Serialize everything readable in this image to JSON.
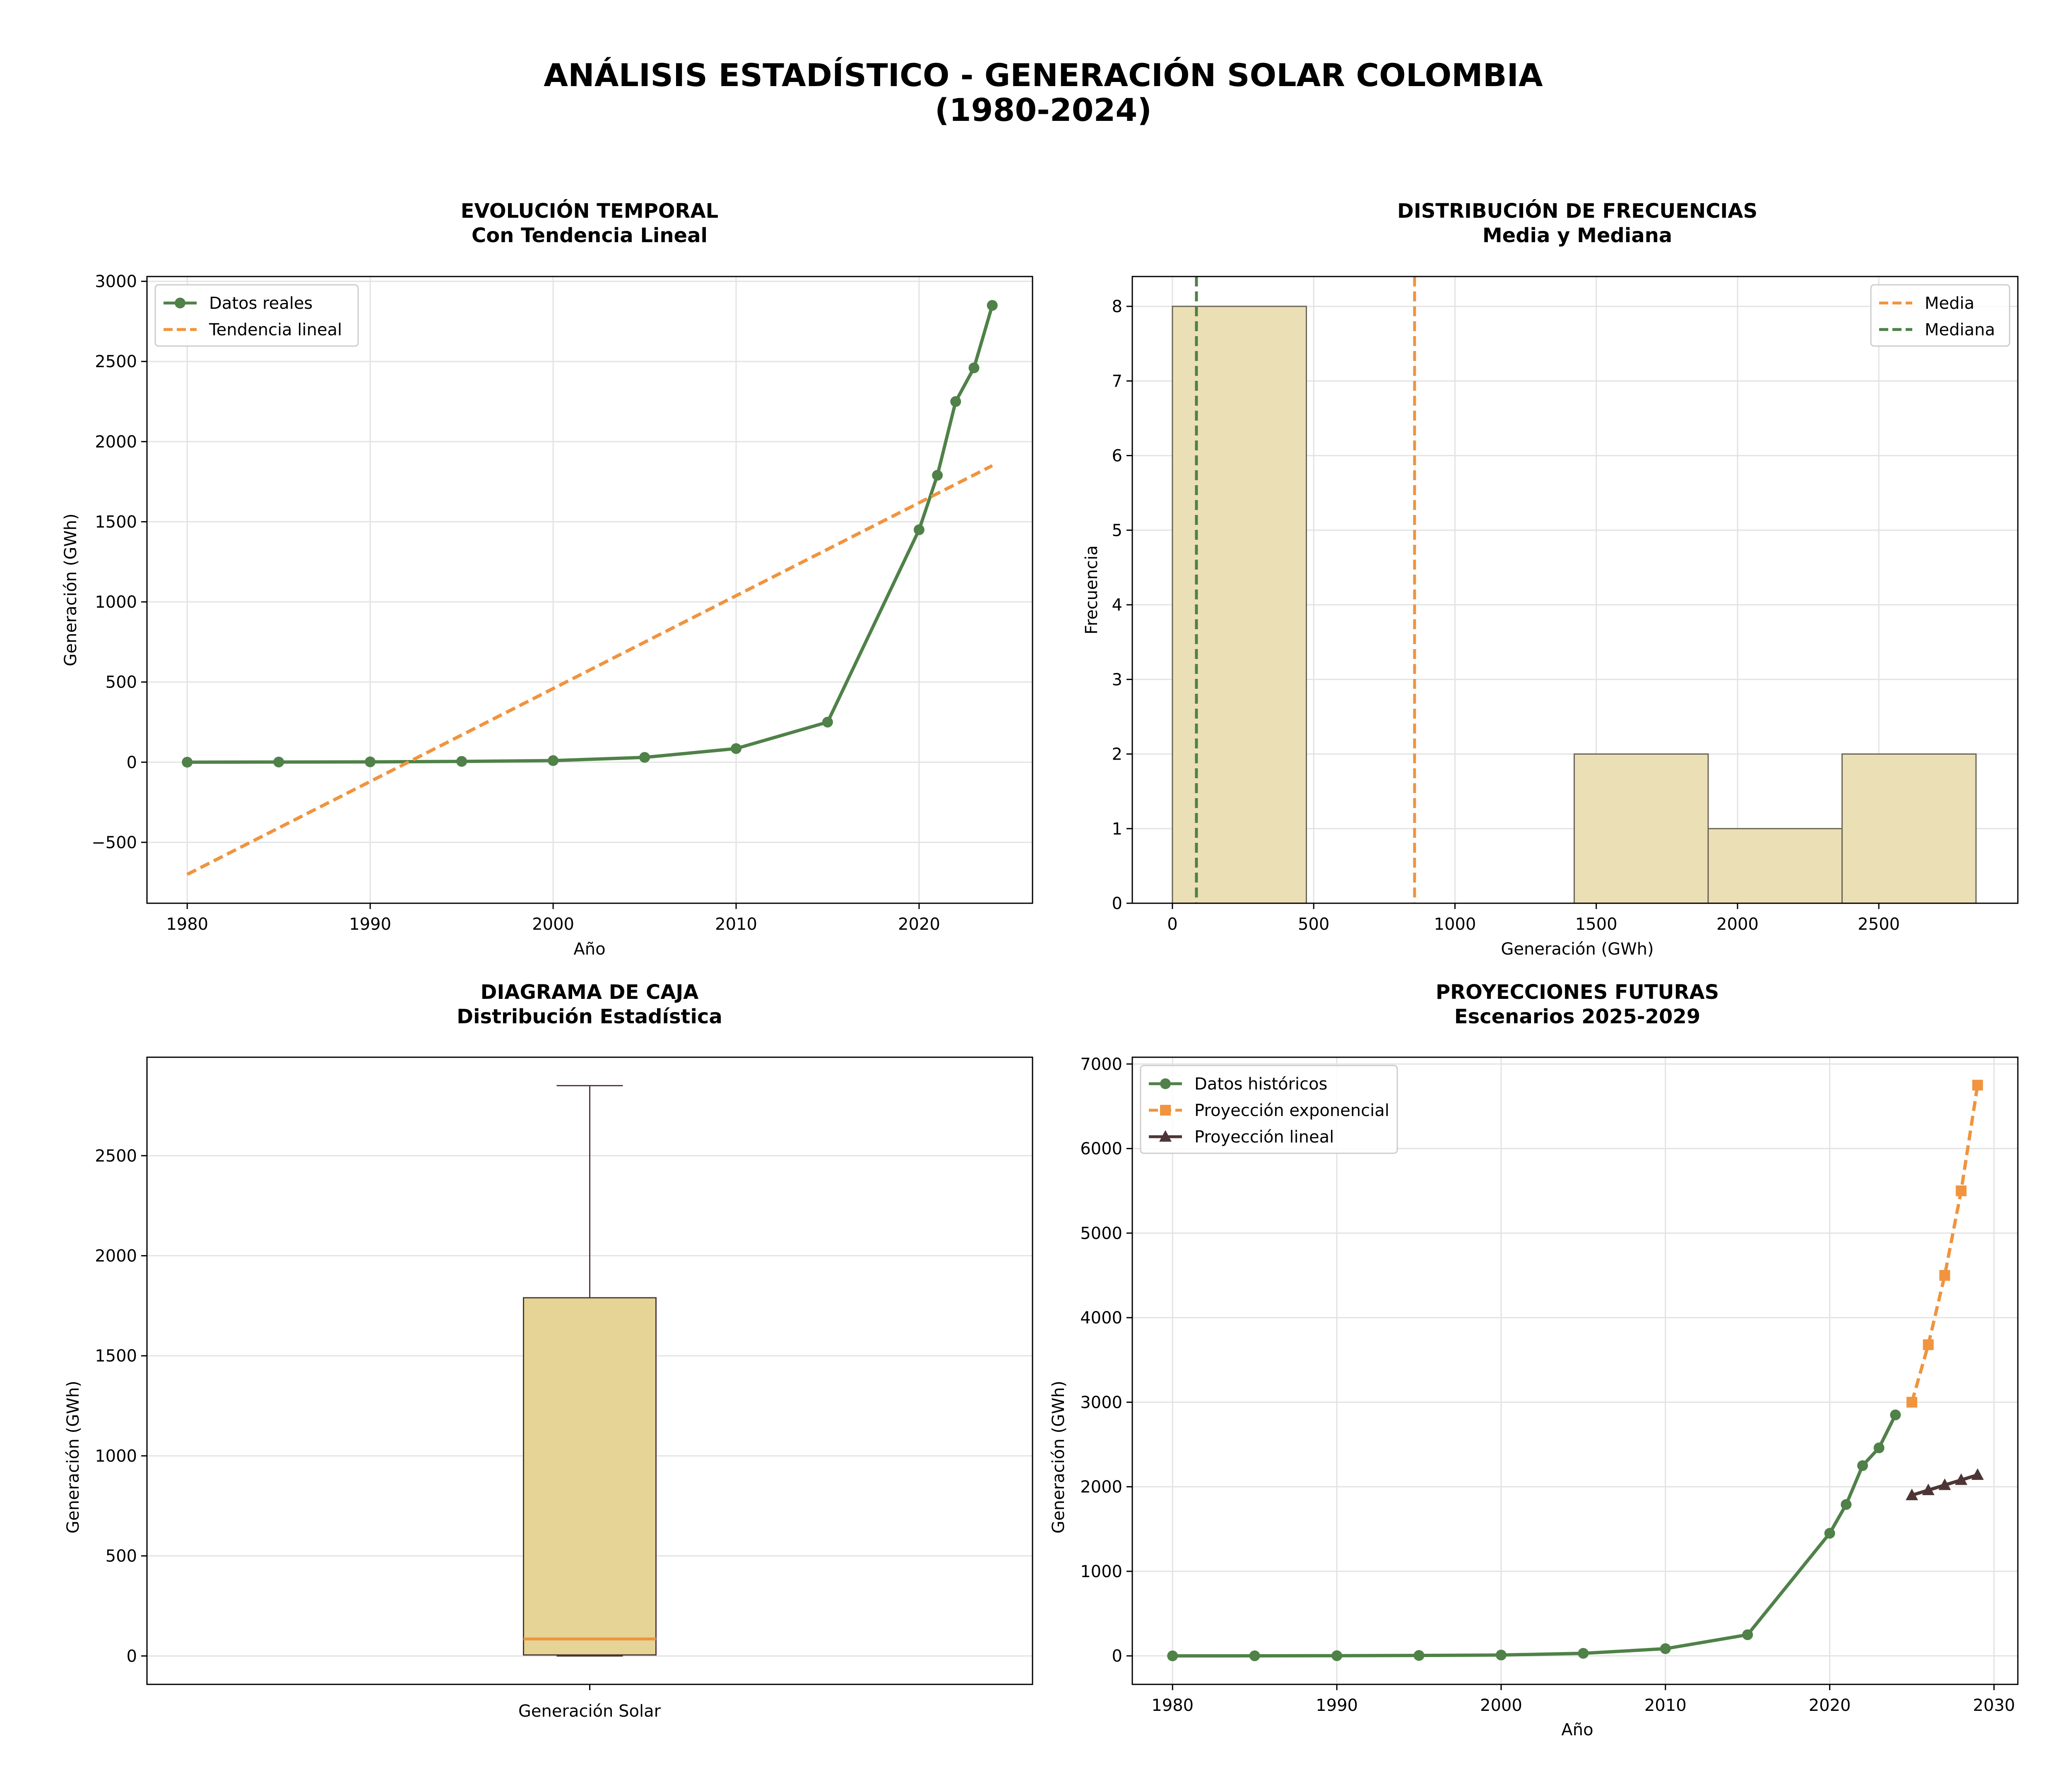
{
  "figure": {
    "title_line1": "ANÁLISIS ESTADÍSTICO - GENERACIÓN SOLAR COLOMBIA",
    "title_line2": "(1980-2024)"
  },
  "colors": {
    "green": "#4f8148",
    "orange": "#f0943f",
    "brown": "#4e3535",
    "tan_hist": "#ebdfb5",
    "tan_box": "#e5d495",
    "grid": "#e3e3e3"
  },
  "chart_data": [
    {
      "id": "temporal",
      "type": "line",
      "title_line1": "EVOLUCIÓN TEMPORAL",
      "title_line2": "Con Tendencia Lineal",
      "xlabel": "Año",
      "ylabel": "Generación (GWh)",
      "xlim": [
        1977.8,
        2026.2
      ],
      "ylim": [
        -880,
        3030
      ],
      "xticks": [
        1980,
        1990,
        2000,
        2010,
        2020
      ],
      "yticks": [
        -500,
        0,
        500,
        1000,
        1500,
        2000,
        2500,
        3000
      ],
      "ytick_labels": [
        "−500",
        "0",
        "500",
        "1000",
        "1500",
        "2000",
        "2500",
        "3000"
      ],
      "grid": true,
      "legend_position": "upper left",
      "series": [
        {
          "name": "Datos reales",
          "style": "solid",
          "marker": "circle",
          "x": [
            1980,
            1985,
            1990,
            1995,
            2000,
            2005,
            2010,
            2015,
            2020,
            2021,
            2022,
            2023,
            2024
          ],
          "y": [
            0,
            1,
            2,
            5,
            10,
            30,
            85,
            250,
            1450,
            1790,
            2250,
            2460,
            2850
          ]
        },
        {
          "name": "Tendencia lineal",
          "style": "dashed",
          "marker": "none",
          "x": [
            1980,
            2024
          ],
          "y": [
            -700,
            1850
          ]
        }
      ]
    },
    {
      "id": "histogram",
      "type": "bar",
      "title_line1": "DISTRIBUCIÓN DE FRECUENCIAS",
      "title_line2": "Media y Mediana",
      "xlabel": "Generación (GWh)",
      "ylabel": "Frecuencia",
      "xlim": [
        -142,
        2992
      ],
      "ylim": [
        0,
        8.4
      ],
      "xticks": [
        0,
        500,
        1000,
        1500,
        2000,
        2500
      ],
      "yticks": [
        0,
        1,
        2,
        3,
        4,
        5,
        6,
        7,
        8
      ],
      "grid": true,
      "legend_position": "upper right",
      "bins": [
        0,
        474,
        948,
        1422,
        1896,
        2370,
        2844
      ],
      "counts": [
        8,
        0,
        0,
        2,
        1,
        2
      ],
      "vlines": [
        {
          "name": "Media",
          "x": 857
        },
        {
          "name": "Mediana",
          "x": 85
        }
      ]
    },
    {
      "id": "boxplot",
      "type": "box",
      "title_line1": "DIAGRAMA DE CAJA",
      "title_line2": "Distribución Estadística",
      "ylabel": "Generación (GWh)",
      "category": "Generación Solar",
      "ylim": [
        -142,
        2992
      ],
      "yticks": [
        0,
        500,
        1000,
        1500,
        2000,
        2500
      ],
      "grid": true,
      "min": 0,
      "q1": 5,
      "median": 85,
      "q3": 1790,
      "max": 2850
    },
    {
      "id": "projections",
      "type": "line",
      "title_line1": "PROYECCIONES FUTURAS",
      "title_line2": "Escenarios 2025-2029",
      "xlabel": "Año",
      "ylabel": "Generación (GWh)",
      "xlim": [
        1977.55,
        2031.45
      ],
      "ylim": [
        -337,
        7080
      ],
      "xticks": [
        1980,
        1990,
        2000,
        2010,
        2020,
        2030
      ],
      "yticks": [
        0,
        1000,
        2000,
        3000,
        4000,
        5000,
        6000,
        7000
      ],
      "grid": true,
      "legend_position": "upper left",
      "series": [
        {
          "name": "Datos históricos",
          "style": "solid",
          "marker": "circle",
          "x": [
            1980,
            1985,
            1990,
            1995,
            2000,
            2005,
            2010,
            2015,
            2020,
            2021,
            2022,
            2023,
            2024
          ],
          "y": [
            0,
            1,
            2,
            5,
            10,
            30,
            85,
            250,
            1450,
            1790,
            2250,
            2460,
            2850
          ]
        },
        {
          "name": "Proyección exponencial",
          "style": "dashed",
          "marker": "square",
          "x": [
            2025,
            2026,
            2027,
            2028,
            2029
          ],
          "y": [
            3000,
            3680,
            4500,
            5500,
            6750
          ]
        },
        {
          "name": "Proyección lineal",
          "style": "solid",
          "marker": "triangle",
          "x": [
            2025,
            2026,
            2027,
            2028,
            2029
          ],
          "y": [
            1900,
            1960,
            2020,
            2080,
            2140
          ]
        }
      ]
    }
  ]
}
